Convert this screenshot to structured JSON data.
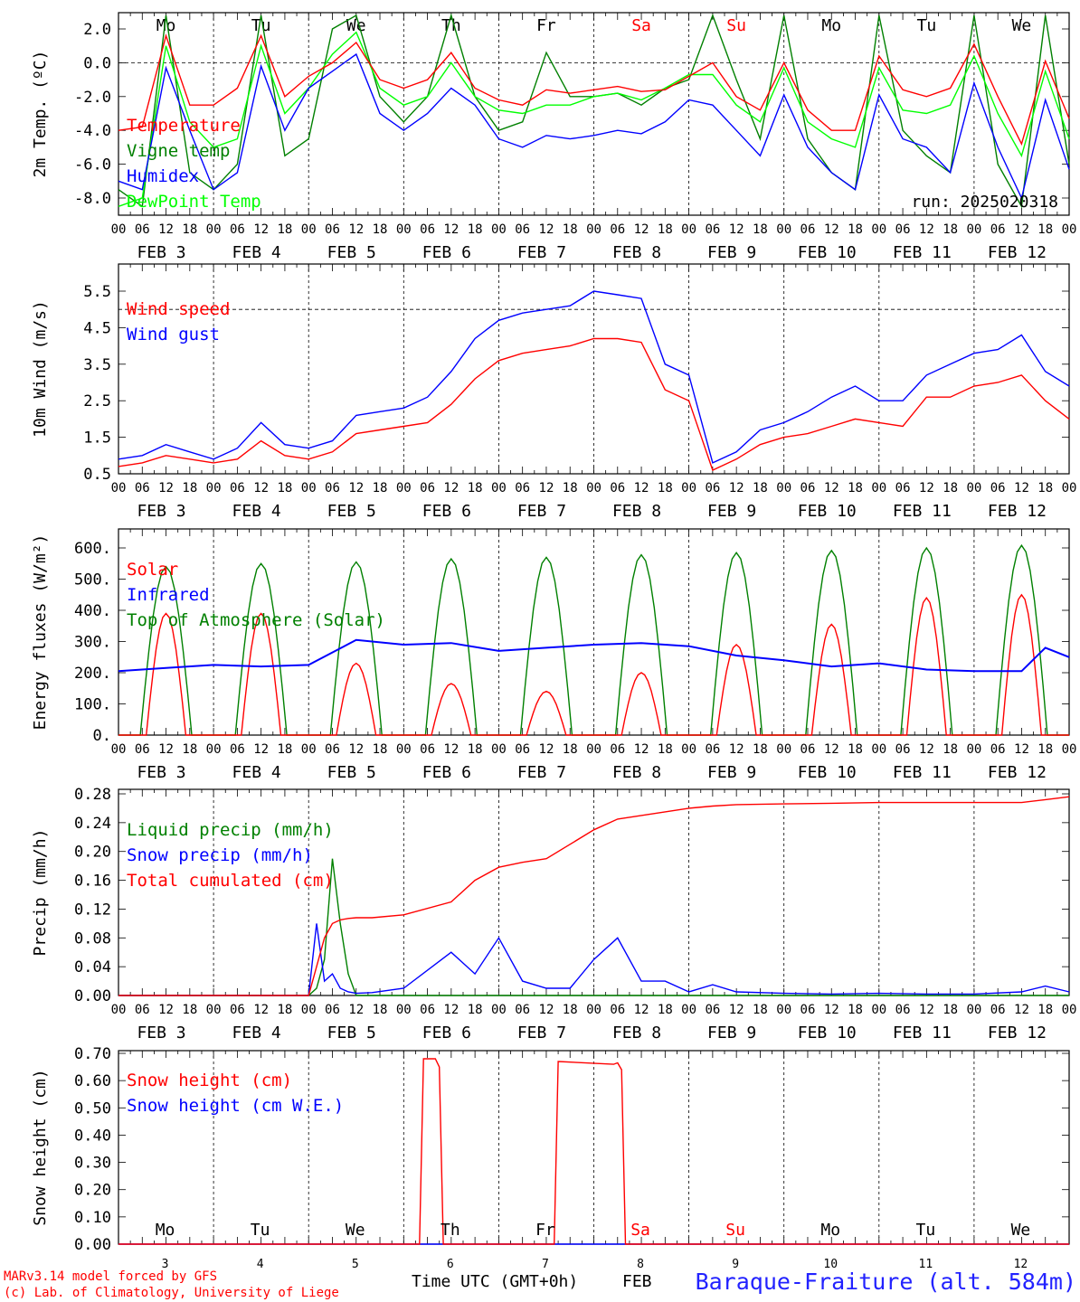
{
  "run_label": "run: 2025020318",
  "footer": {
    "model": "MARv3.14 model forced by GFS",
    "credit": "(c) Lab. of Climatology, University of Liege",
    "time_axis": "Time UTC (GMT+0h)",
    "month": "FEB",
    "station": "Baraque-Fraiture (alt. 584m)"
  },
  "time_axis": {
    "hour_labels": [
      "00",
      "06",
      "12",
      "18"
    ],
    "day_labels": [
      "FEB  3",
      "FEB  4",
      "FEB  5",
      "FEB  6",
      "FEB  7",
      "FEB  8",
      "FEB  9",
      "FEB 10",
      "FEB 11",
      "FEB 12"
    ],
    "weekdays": [
      "Mo",
      "Tu",
      "We",
      "Th",
      "Fr",
      "Sa",
      "Su",
      "Mo",
      "Tu",
      "We"
    ],
    "weekday_colors": [
      "#000000",
      "#000000",
      "#000000",
      "#000000",
      "#000000",
      "#ff0000",
      "#ff0000",
      "#000000",
      "#000000",
      "#000000"
    ],
    "day_numbers": [
      "3",
      "4",
      "5",
      "6",
      "7",
      "8",
      "9",
      "10",
      "11",
      "12"
    ]
  },
  "chart_data": [
    {
      "type": "line",
      "ylabel": "2m Temp. (ºC)",
      "yticks": [
        "2.0",
        "0.0",
        "-2.0",
        "-4.0",
        "-6.0",
        "-8.0"
      ],
      "ylim": [
        -9.0,
        3.0
      ],
      "x_unit": "hours since FEB 3 00 UTC",
      "x": [
        0,
        6,
        12,
        18,
        24,
        30,
        36,
        42,
        48,
        54,
        60,
        66,
        72,
        78,
        84,
        90,
        96,
        102,
        108,
        114,
        120,
        126,
        132,
        138,
        144,
        150,
        156,
        162,
        168,
        174,
        180,
        186,
        192,
        198,
        204,
        210,
        216,
        222,
        228,
        234,
        240
      ],
      "series": [
        {
          "name": "Temperature",
          "color": "#ff0000",
          "values": [
            -4.0,
            -3.8,
            1.6,
            -2.5,
            -2.5,
            -1.5,
            1.6,
            -2.0,
            -0.8,
            0.0,
            1.2,
            -1.0,
            -1.5,
            -1.0,
            0.6,
            -1.5,
            -2.2,
            -2.5,
            -1.6,
            -1.8,
            -1.6,
            -1.4,
            -1.7,
            -1.6,
            -0.8,
            0.0,
            -2.0,
            -2.8,
            0.0,
            -2.8,
            -4.0,
            -4.0,
            0.4,
            -1.6,
            -2.0,
            -1.5,
            1.1,
            -2.0,
            -4.8,
            0.1,
            -3.3
          ]
        },
        {
          "name": "Vigne temp",
          "color": "#008000",
          "values": [
            -7.5,
            -8.5,
            2.8,
            -6.5,
            -7.5,
            -6.0,
            2.8,
            -5.5,
            -4.5,
            2.0,
            2.8,
            -2.0,
            -3.5,
            -2.0,
            2.8,
            -2.0,
            -4.0,
            -3.5,
            0.6,
            -2.0,
            -2.0,
            -1.8,
            -2.5,
            -1.5,
            -1.0,
            2.8,
            -1.0,
            -4.5,
            2.8,
            -4.5,
            -6.5,
            -7.5,
            2.8,
            -4.0,
            -5.5,
            -6.5,
            2.8,
            -6.0,
            -8.5,
            2.8,
            -6.0
          ]
        },
        {
          "name": "Humidex",
          "color": "#0000ff",
          "values": [
            -7.0,
            -7.5,
            -0.3,
            -4.0,
            -7.5,
            -6.5,
            -0.2,
            -4.0,
            -1.5,
            -0.5,
            0.5,
            -3.0,
            -4.0,
            -3.0,
            -1.5,
            -2.5,
            -4.5,
            -5.0,
            -4.3,
            -4.5,
            -4.3,
            -4.0,
            -4.2,
            -3.5,
            -2.2,
            -2.5,
            -4.0,
            -5.5,
            -1.9,
            -5.0,
            -6.5,
            -7.5,
            -1.9,
            -4.5,
            -5.0,
            -6.5,
            -1.2,
            -5.0,
            -8.0,
            -2.2,
            -6.3
          ]
        },
        {
          "name": "DewPoint Temp",
          "color": "#00ff00",
          "values": [
            -8.5,
            -8.0,
            1.0,
            -3.5,
            -5.0,
            -4.5,
            1.0,
            -3.0,
            -1.5,
            0.5,
            1.8,
            -1.5,
            -2.5,
            -2.0,
            0.0,
            -2.0,
            -2.8,
            -3.0,
            -2.5,
            -2.5,
            -2.0,
            -1.8,
            -2.2,
            -1.5,
            -0.7,
            -0.7,
            -2.5,
            -3.5,
            -0.3,
            -3.5,
            -4.5,
            -5.0,
            -0.3,
            -2.8,
            -3.0,
            -2.5,
            0.4,
            -3.0,
            -5.5,
            -0.5,
            -4.5
          ]
        }
      ]
    },
    {
      "type": "line",
      "ylabel": "10m Wind (m/s)",
      "yticks": [
        "5.5",
        "4.5",
        "3.5",
        "2.5",
        "1.5",
        "0.5"
      ],
      "ylim": [
        0.5,
        6.0
      ],
      "x": [
        0,
        6,
        12,
        18,
        24,
        30,
        36,
        42,
        48,
        54,
        60,
        66,
        72,
        78,
        84,
        90,
        96,
        102,
        108,
        114,
        120,
        126,
        132,
        138,
        144,
        150,
        156,
        162,
        168,
        174,
        180,
        186,
        192,
        198,
        204,
        210,
        216,
        222,
        228,
        234,
        240
      ],
      "series": [
        {
          "name": "Wind speed",
          "color": "#ff0000",
          "values": [
            0.7,
            0.8,
            1.0,
            0.9,
            0.8,
            0.9,
            1.4,
            1.0,
            0.9,
            1.1,
            1.6,
            1.7,
            1.8,
            1.9,
            2.4,
            3.1,
            3.6,
            3.8,
            3.9,
            4.0,
            4.2,
            4.2,
            4.1,
            2.8,
            2.5,
            0.6,
            0.9,
            1.3,
            1.5,
            1.6,
            1.8,
            2.0,
            1.9,
            1.8,
            2.6,
            2.6,
            2.9,
            3.0,
            3.2,
            2.5,
            2.0
          ]
        },
        {
          "name": "Wind gust",
          "color": "#0000ff",
          "values": [
            0.9,
            1.0,
            1.3,
            1.1,
            0.9,
            1.2,
            1.9,
            1.3,
            1.2,
            1.4,
            2.1,
            2.2,
            2.3,
            2.6,
            3.3,
            4.2,
            4.7,
            4.9,
            5.0,
            5.1,
            5.5,
            5.4,
            5.3,
            3.5,
            3.2,
            0.8,
            1.1,
            1.7,
            1.9,
            2.2,
            2.6,
            2.9,
            2.5,
            2.5,
            3.2,
            3.5,
            3.8,
            3.9,
            4.3,
            3.3,
            2.9
          ]
        }
      ]
    },
    {
      "type": "line",
      "ylabel": "Energy fluxes (W/m²)",
      "yticks": [
        "600.",
        "500.",
        "400.",
        "300.",
        "200.",
        "100.",
        "0."
      ],
      "ylim": [
        0,
        650
      ],
      "x_unit": "hours since FEB 3 00 UTC",
      "series": [
        {
          "name": "Solar",
          "color": "#ff0000",
          "peaks": [
            {
              "x": 12,
              "y": 390
            },
            {
              "x": 36,
              "y": 390
            },
            {
              "x": 60,
              "y": 230
            },
            {
              "x": 84,
              "y": 165
            },
            {
              "x": 108,
              "y": 140
            },
            {
              "x": 132,
              "y": 200
            },
            {
              "x": 156,
              "y": 290
            },
            {
              "x": 180,
              "y": 355
            },
            {
              "x": 204,
              "y": 440
            },
            {
              "x": 228,
              "y": 450
            }
          ]
        },
        {
          "name": "Infrared",
          "color": "#0000ff",
          "x": [
            0,
            12,
            24,
            36,
            48,
            60,
            72,
            84,
            96,
            108,
            120,
            132,
            144,
            156,
            168,
            180,
            192,
            204,
            216,
            228,
            234,
            240
          ],
          "values": [
            205,
            215,
            225,
            220,
            225,
            305,
            290,
            295,
            270,
            280,
            290,
            295,
            285,
            255,
            240,
            220,
            230,
            210,
            205,
            205,
            280,
            250
          ]
        },
        {
          "name": "Top of Atmosphere (Solar)",
          "color": "#008000",
          "peaks": [
            {
              "x": 12,
              "y": 540
            },
            {
              "x": 36,
              "y": 550
            },
            {
              "x": 60,
              "y": 555
            },
            {
              "x": 84,
              "y": 565
            },
            {
              "x": 108,
              "y": 570
            },
            {
              "x": 132,
              "y": 578
            },
            {
              "x": 156,
              "y": 585
            },
            {
              "x": 180,
              "y": 592
            },
            {
              "x": 204,
              "y": 600
            },
            {
              "x": 228,
              "y": 608
            }
          ]
        }
      ]
    },
    {
      "type": "line",
      "ylabel": "Precip (mm/h)",
      "yticks": [
        "0.28",
        "0.24",
        "0.20",
        "0.16",
        "0.12",
        "0.08",
        "0.04",
        "0.00"
      ],
      "ylim": [
        0,
        0.28
      ],
      "x": [
        0,
        12,
        24,
        36,
        48,
        50,
        52,
        54,
        56,
        58,
        60,
        64,
        72,
        84,
        90,
        96,
        102,
        108,
        114,
        120,
        126,
        132,
        138,
        144,
        150,
        156,
        168,
        180,
        192,
        204,
        216,
        228,
        234,
        240
      ],
      "series": [
        {
          "name": "Liquid precip (mm/h)",
          "color": "#008000",
          "values": [
            0,
            0,
            0,
            0,
            0,
            0.01,
            0.05,
            0.19,
            0.1,
            0.03,
            0.0,
            0,
            0,
            0,
            0,
            0,
            0,
            0,
            0,
            0,
            0,
            0,
            0,
            0,
            0,
            0,
            0,
            0,
            0,
            0,
            0,
            0,
            0,
            0
          ]
        },
        {
          "name": "Snow precip (mm/h)",
          "color": "#0000ff",
          "values": [
            0,
            0,
            0,
            0,
            0,
            0.1,
            0.02,
            0.03,
            0.01,
            0.005,
            0.003,
            0.004,
            0.01,
            0.06,
            0.03,
            0.08,
            0.02,
            0.01,
            0.01,
            0.05,
            0.08,
            0.02,
            0.02,
            0.005,
            0.015,
            0.005,
            0.003,
            0.002,
            0.003,
            0.002,
            0.002,
            0.005,
            0.013,
            0.005
          ]
        },
        {
          "name": "Total cumulated (cm)",
          "color": "#ff0000",
          "values": [
            0,
            0,
            0,
            0,
            0,
            0.04,
            0.08,
            0.1,
            0.105,
            0.107,
            0.108,
            0.108,
            0.112,
            0.13,
            0.16,
            0.178,
            0.185,
            0.19,
            0.21,
            0.23,
            0.245,
            0.25,
            0.255,
            0.26,
            0.263,
            0.265,
            0.266,
            0.267,
            0.268,
            0.268,
            0.268,
            0.268,
            0.272,
            0.276
          ]
        }
      ]
    },
    {
      "type": "line",
      "ylabel": "Snow height (cm)",
      "yticks": [
        "0.70",
        "0.60",
        "0.50",
        "0.40",
        "0.30",
        "0.20",
        "0.10",
        "0.00"
      ],
      "ylim": [
        0,
        0.7
      ],
      "x": [
        0,
        76,
        77,
        80,
        81,
        82,
        85,
        110,
        111,
        125,
        126,
        127,
        128,
        240
      ],
      "series": [
        {
          "name": "Snow height (cm)",
          "color": "#ff0000",
          "values": [
            0,
            0,
            0.68,
            0.68,
            0.65,
            0,
            0,
            0,
            0.67,
            0.66,
            0.665,
            0.64,
            0,
            0
          ]
        },
        {
          "name": "Snow height (cm W.E.)",
          "color": "#0000ff",
          "values": [
            0,
            0,
            0,
            0,
            0,
            0,
            0,
            0,
            0,
            0,
            0,
            0,
            0,
            0
          ]
        }
      ]
    }
  ]
}
